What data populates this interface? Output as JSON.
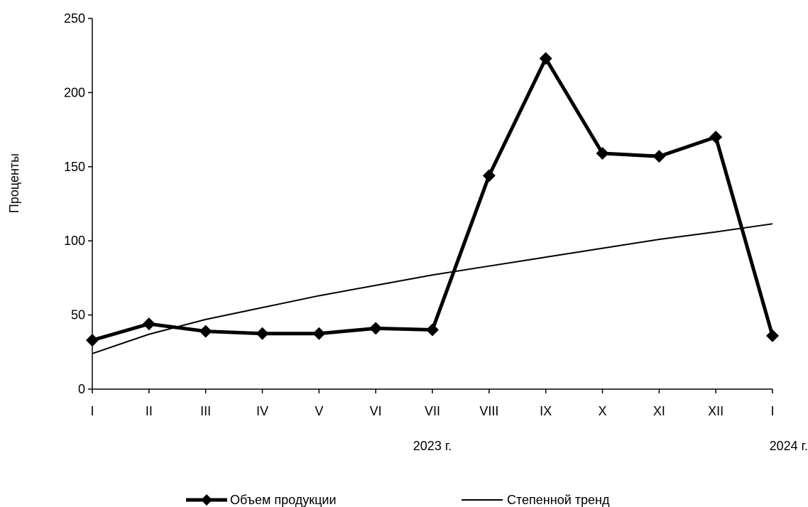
{
  "chart_data": {
    "type": "line",
    "categories": [
      "I",
      "II",
      "III",
      "IV",
      "V",
      "VI",
      "VII",
      "VIII",
      "IX",
      "X",
      "XI",
      "XII",
      "I"
    ],
    "year_labels": [
      {
        "text": "2023 г.",
        "category_index": 6
      },
      {
        "text": "2024 г.",
        "category_index": 12
      }
    ],
    "ylabel": "Проценты",
    "ylim": [
      0,
      250
    ],
    "yticks": [
      0,
      50,
      100,
      150,
      200,
      250
    ],
    "grid": false,
    "legend_position": "bottom",
    "series": [
      {
        "name": "Объем продукции",
        "style": "thick-line-diamond-markers",
        "color": "#000000",
        "values": [
          33,
          44,
          39,
          37.5,
          37.5,
          41,
          40,
          144,
          223,
          159,
          157,
          170,
          36
        ]
      },
      {
        "name": "Степенной тренд",
        "style": "thin-line",
        "color": "#000000",
        "values": [
          24,
          37,
          47,
          55,
          63,
          70,
          77,
          83,
          89,
          95,
          101,
          106,
          111.5
        ]
      }
    ]
  }
}
